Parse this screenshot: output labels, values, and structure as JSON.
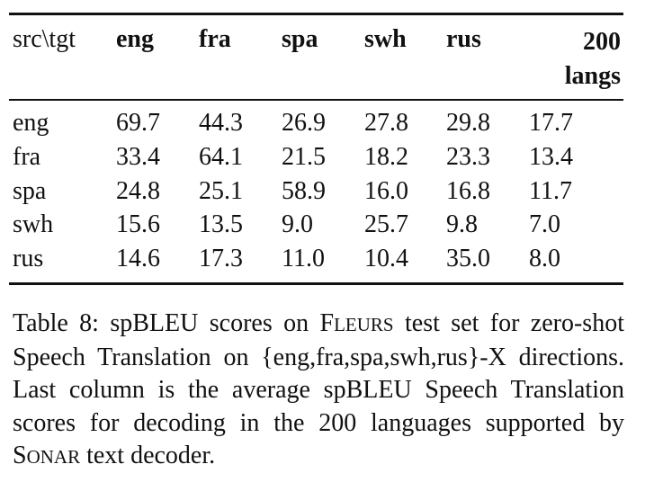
{
  "table": {
    "header": {
      "corner": "src\\tgt",
      "columns": [
        "eng",
        "fra",
        "spa",
        "swh",
        "rus"
      ],
      "last_column_line1": "200",
      "last_column_line2": "langs"
    },
    "rows": [
      {
        "src": "eng",
        "values": [
          "69.7",
          "44.3",
          "26.9",
          "27.8",
          "29.8",
          "17.7"
        ]
      },
      {
        "src": "fra",
        "values": [
          "33.4",
          "64.1",
          "21.5",
          "18.2",
          "23.3",
          "13.4"
        ]
      },
      {
        "src": "spa",
        "values": [
          "24.8",
          "25.1",
          "58.9",
          "16.0",
          "16.8",
          "11.7"
        ]
      },
      {
        "src": "swh",
        "values": [
          "15.6",
          "13.5",
          "9.0",
          "25.7",
          "9.8",
          "7.0"
        ]
      },
      {
        "src": "rus",
        "values": [
          "14.6",
          "17.3",
          "11.0",
          "10.4",
          "35.0",
          "8.0"
        ]
      }
    ]
  },
  "caption": {
    "part1": "Table 8: spBLEU scores on ",
    "fleurs_initial": "F",
    "fleurs_rest": "LEURS",
    "part2": " test set for zero-shot Speech Translation on {eng,fra,spa,swh,rus}-X directions. Last column is the average spBLEU Speech Translation scores for decoding in the 200 languages supported by ",
    "sonar_initial": "S",
    "sonar_rest": "ONAR",
    "part3": " text decoder."
  }
}
